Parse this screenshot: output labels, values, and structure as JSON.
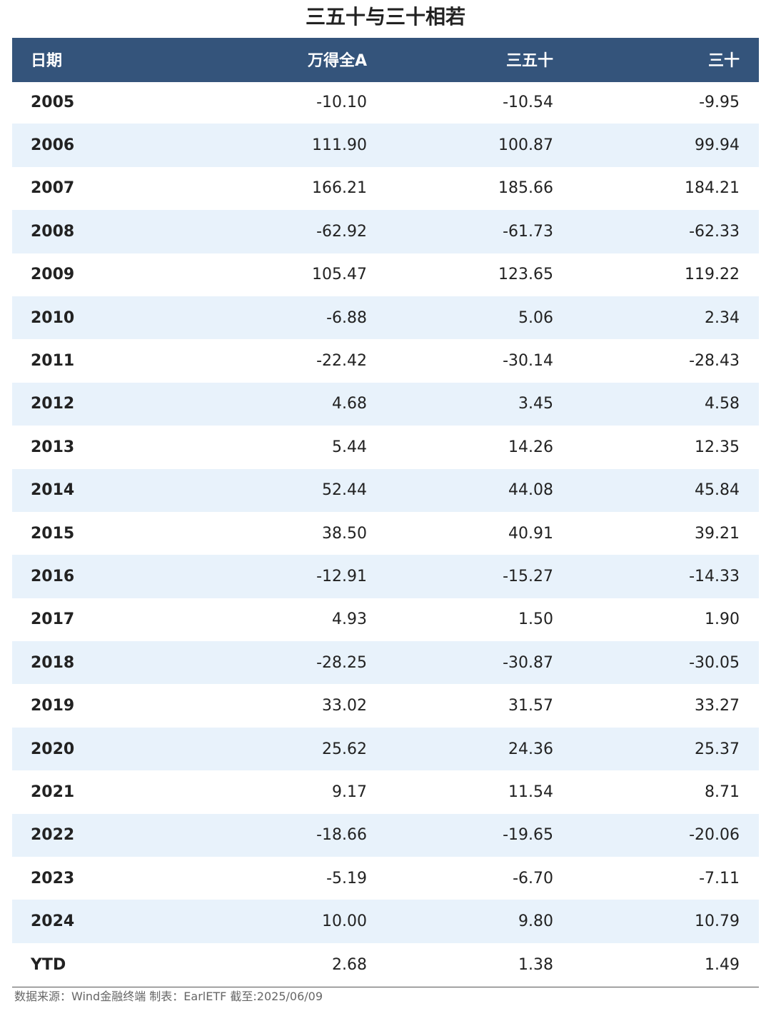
{
  "chart_data": {
    "type": "table",
    "title": "三五十与三十相若",
    "columns": [
      "日期",
      "万得全A",
      "三五十",
      "三十"
    ],
    "rows": [
      [
        "2005",
        "-10.10",
        "-10.54",
        "-9.95"
      ],
      [
        "2006",
        "111.90",
        "100.87",
        "99.94"
      ],
      [
        "2007",
        "166.21",
        "185.66",
        "184.21"
      ],
      [
        "2008",
        "-62.92",
        "-61.73",
        "-62.33"
      ],
      [
        "2009",
        "105.47",
        "123.65",
        "119.22"
      ],
      [
        "2010",
        "-6.88",
        "5.06",
        "2.34"
      ],
      [
        "2011",
        "-22.42",
        "-30.14",
        "-28.43"
      ],
      [
        "2012",
        "4.68",
        "3.45",
        "4.58"
      ],
      [
        "2013",
        "5.44",
        "14.26",
        "12.35"
      ],
      [
        "2014",
        "52.44",
        "44.08",
        "45.84"
      ],
      [
        "2015",
        "38.50",
        "40.91",
        "39.21"
      ],
      [
        "2016",
        "-12.91",
        "-15.27",
        "-14.33"
      ],
      [
        "2017",
        "4.93",
        "1.50",
        "1.90"
      ],
      [
        "2018",
        "-28.25",
        "-30.87",
        "-30.05"
      ],
      [
        "2019",
        "33.02",
        "31.57",
        "33.27"
      ],
      [
        "2020",
        "25.62",
        "24.36",
        "25.37"
      ],
      [
        "2021",
        "9.17",
        "11.54",
        "8.71"
      ],
      [
        "2022",
        "-18.66",
        "-19.65",
        "-20.06"
      ],
      [
        "2023",
        "-5.19",
        "-6.70",
        "-7.11"
      ],
      [
        "2024",
        "10.00",
        "9.80",
        "10.79"
      ],
      [
        "YTD",
        "2.68",
        "1.38",
        "1.49"
      ]
    ],
    "footnote": "数据来源：Wind金融终端 制表：EarlETF 截至:2025/06/09"
  },
  "colors": {
    "header_bg": "#34547b",
    "header_text": "#ffffff",
    "stripe_bg": "#e8f2fb",
    "text": "#222222"
  }
}
